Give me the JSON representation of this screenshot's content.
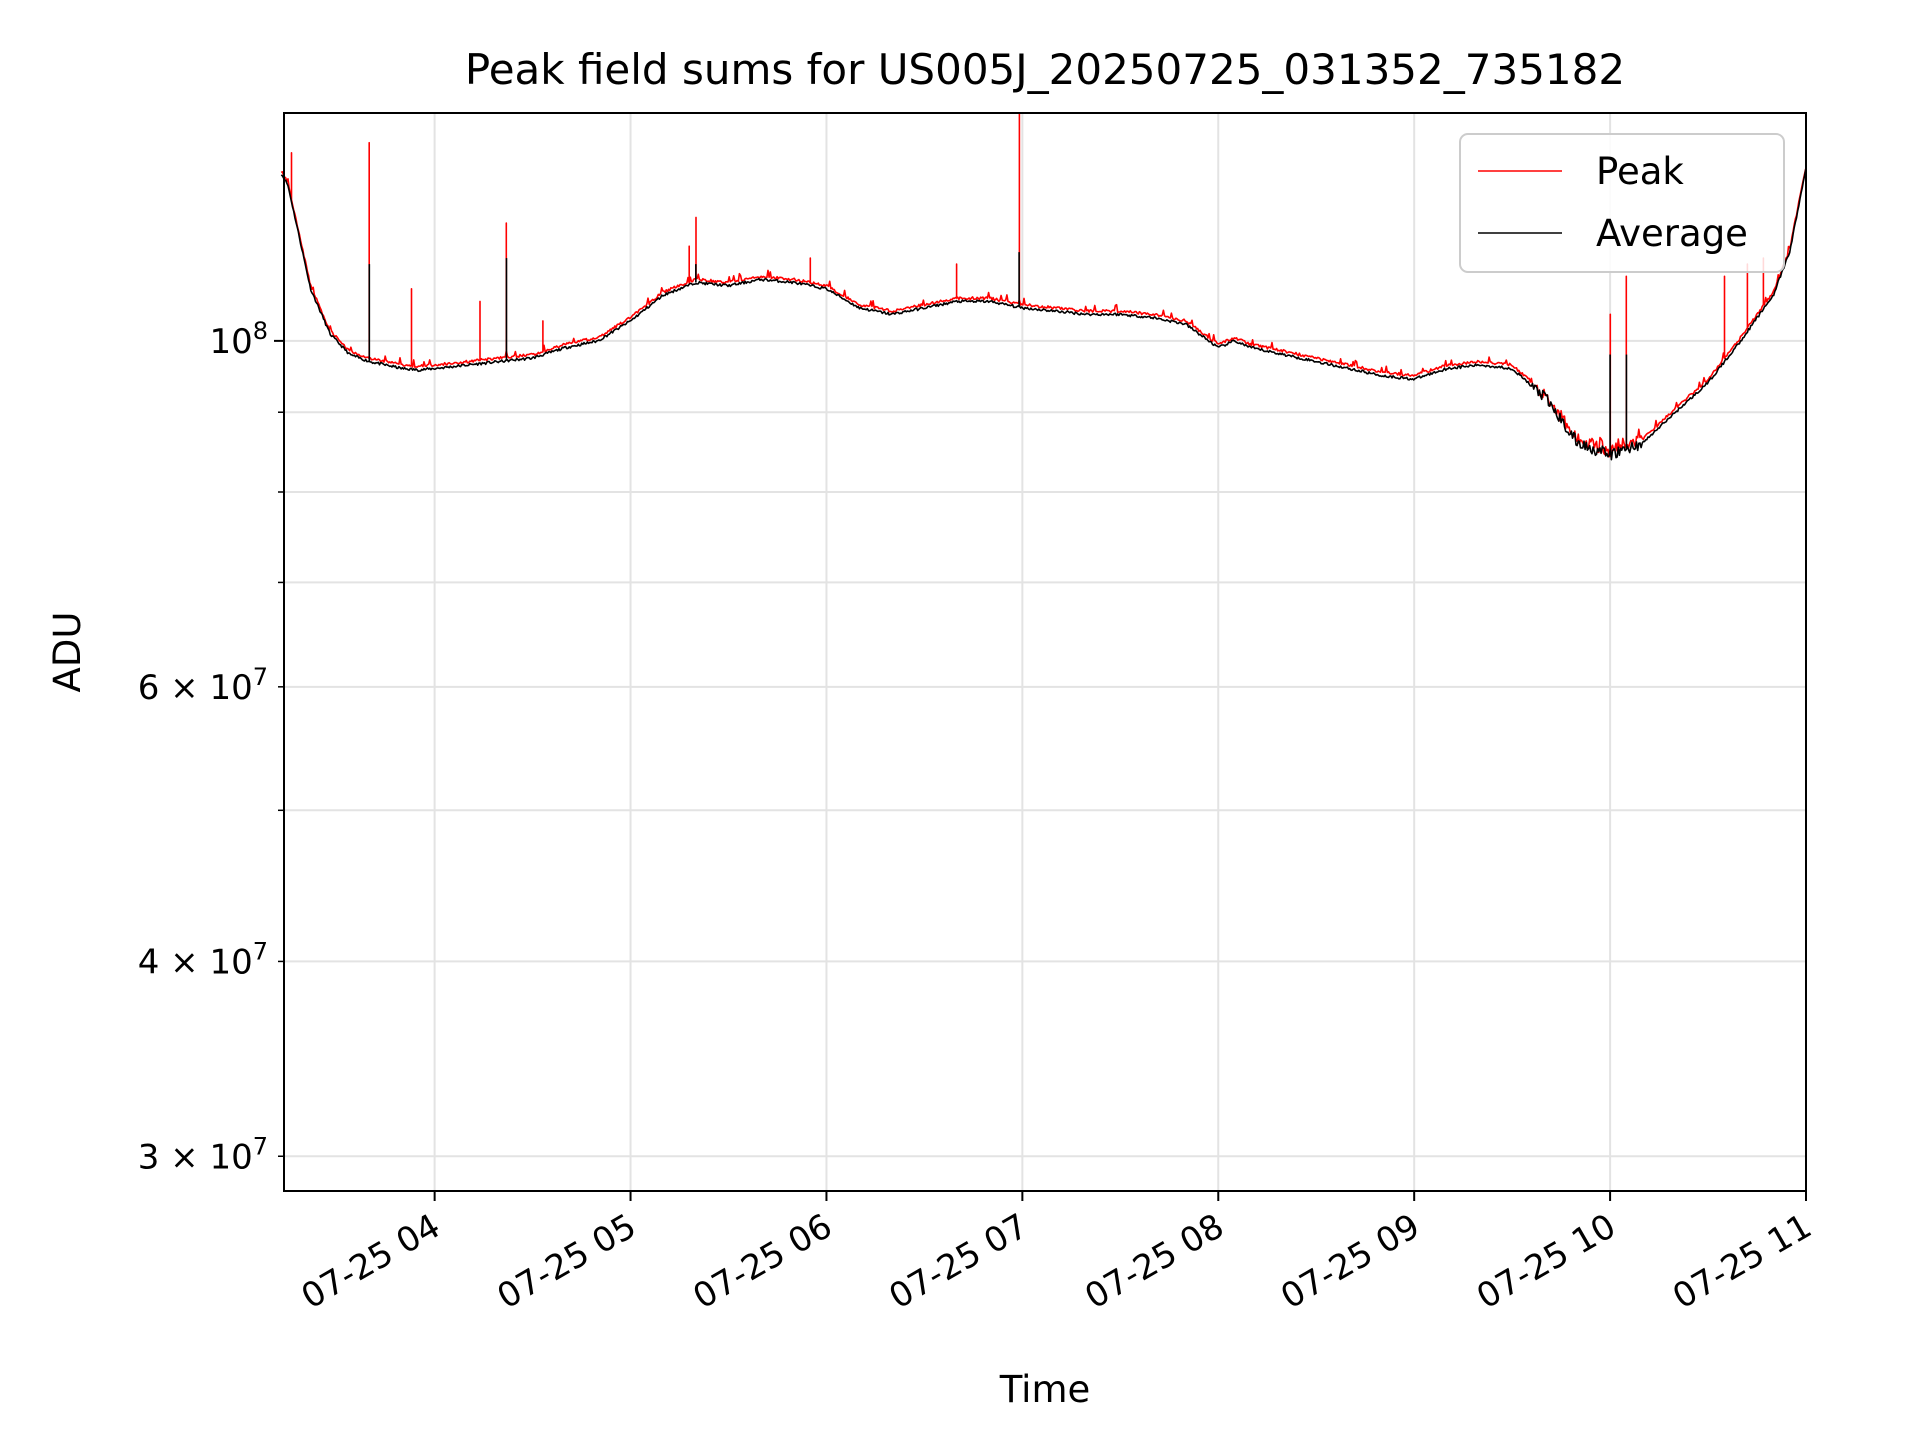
{
  "chart_data": {
    "type": "line",
    "title": "Peak field sums for US005J_20250725_031352_735182",
    "xlabel": "Time",
    "ylabel": "ADU",
    "x_range": [
      "2025-07-25 03:13:52",
      "2025-07-25 11:00:00"
    ],
    "ylim": [
      28500000,
      140000000
    ],
    "yscale": "log",
    "grid": true,
    "legend_position": "upper right",
    "x_ticks": [
      "07-25 04",
      "07-25 05",
      "07-25 06",
      "07-25 07",
      "07-25 08",
      "07-25 09",
      "07-25 10",
      "07-25 11"
    ],
    "y_major_ticks": [
      {
        "value": 100000000,
        "label": "10^8"
      }
    ],
    "y_minor_ticks": [
      {
        "value": 30000000,
        "label": "3 × 10^7"
      },
      {
        "value": 40000000,
        "label": "4 × 10^7"
      },
      {
        "value": 50000000,
        "label": ""
      },
      {
        "value": 60000000,
        "label": "6 × 10^7"
      },
      {
        "value": 70000000,
        "label": ""
      },
      {
        "value": 80000000,
        "label": ""
      },
      {
        "value": 90000000,
        "label": ""
      }
    ],
    "series": [
      {
        "name": "Average",
        "color": "#000000",
        "x": [
          "03:13",
          "03:15",
          "03:18",
          "03:22",
          "03:28",
          "03:34",
          "03:40",
          "03:45",
          "03:50",
          "03:55",
          "04:00",
          "04:10",
          "04:20",
          "04:30",
          "04:40",
          "04:50",
          "05:00",
          "05:10",
          "05:20",
          "05:30",
          "05:40",
          "05:50",
          "06:00",
          "06:10",
          "06:20",
          "06:30",
          "06:40",
          "06:50",
          "07:00",
          "07:10",
          "07:20",
          "07:30",
          "07:40",
          "07:50",
          "08:00",
          "08:05",
          "08:10",
          "08:20",
          "08:30",
          "08:40",
          "08:50",
          "09:00",
          "09:10",
          "09:20",
          "09:30",
          "09:40",
          "09:50",
          "10:00",
          "10:10",
          "10:20",
          "10:30",
          "10:40",
          "10:50",
          "10:55",
          "11:00"
        ],
        "y": [
          128000000,
          126000000,
          118000000,
          108000000,
          101000000,
          98000000,
          97000000,
          96500000,
          96000000,
          95800000,
          96000000,
          96500000,
          97000000,
          97500000,
          99000000,
          100000000,
          103000000,
          107000000,
          109000000,
          108500000,
          109500000,
          109000000,
          108000000,
          105000000,
          104000000,
          105000000,
          106000000,
          106000000,
          105000000,
          104500000,
          104000000,
          104000000,
          103500000,
          102500000,
          99000000,
          100000000,
          99000000,
          98000000,
          97000000,
          96000000,
          95000000,
          94500000,
          96000000,
          96500000,
          96000000,
          92000000,
          86000000,
          84500000,
          86000000,
          90000000,
          94000000,
          100000000,
          107000000,
          114000000,
          129000000
        ]
      },
      {
        "name": "Peak",
        "color": "#ff0000",
        "x": [
          "03:13",
          "03:15",
          "03:18",
          "03:22",
          "03:28",
          "03:34",
          "03:40",
          "03:45",
          "03:50",
          "03:55",
          "04:00",
          "04:10",
          "04:20",
          "04:30",
          "04:40",
          "04:50",
          "05:00",
          "05:10",
          "05:20",
          "05:30",
          "05:40",
          "05:50",
          "06:00",
          "06:10",
          "06:20",
          "06:30",
          "06:40",
          "06:50",
          "07:00",
          "07:10",
          "07:20",
          "07:30",
          "07:40",
          "07:50",
          "08:00",
          "08:05",
          "08:10",
          "08:20",
          "08:30",
          "08:40",
          "08:50",
          "09:00",
          "09:10",
          "09:20",
          "09:30",
          "09:40",
          "09:50",
          "10:00",
          "10:10",
          "10:20",
          "10:30",
          "10:40",
          "10:50",
          "10:55",
          "11:00"
        ],
        "y": [
          128500000,
          126500000,
          118500000,
          108500000,
          101500000,
          98500000,
          97500000,
          97000000,
          96500000,
          96300000,
          96500000,
          97000000,
          97500000,
          98000000,
          99500000,
          100500000,
          103500000,
          107500000,
          109500000,
          109000000,
          110000000,
          109500000,
          108500000,
          105500000,
          104500000,
          105500000,
          106500000,
          106500000,
          105500000,
          105000000,
          104500000,
          104500000,
          104000000,
          103000000,
          99500000,
          100500000,
          99500000,
          98500000,
          97500000,
          96500000,
          95500000,
          95000000,
          96500000,
          97000000,
          96500000,
          92500000,
          86500000,
          85000000,
          86500000,
          90500000,
          94500000,
          100500000,
          107500000,
          114500000,
          129500000
        ],
        "spikes": [
          {
            "x": "03:16",
            "y": 132000000
          },
          {
            "x": "03:40",
            "y": 134000000
          },
          {
            "x": "03:53",
            "y": 108000000
          },
          {
            "x": "04:14",
            "y": 106000000
          },
          {
            "x": "04:22",
            "y": 119000000
          },
          {
            "x": "04:33",
            "y": 103000000
          },
          {
            "x": "05:18",
            "y": 115000000
          },
          {
            "x": "05:20",
            "y": 120000000
          },
          {
            "x": "05:55",
            "y": 113000000
          },
          {
            "x": "06:40",
            "y": 112000000
          },
          {
            "x": "06:59",
            "y": 140000000
          },
          {
            "x": "10:00",
            "y": 104000000
          },
          {
            "x": "10:05",
            "y": 110000000
          },
          {
            "x": "10:35",
            "y": 110000000
          },
          {
            "x": "10:42",
            "y": 112000000
          },
          {
            "x": "10:47",
            "y": 113000000
          }
        ]
      }
    ]
  }
}
